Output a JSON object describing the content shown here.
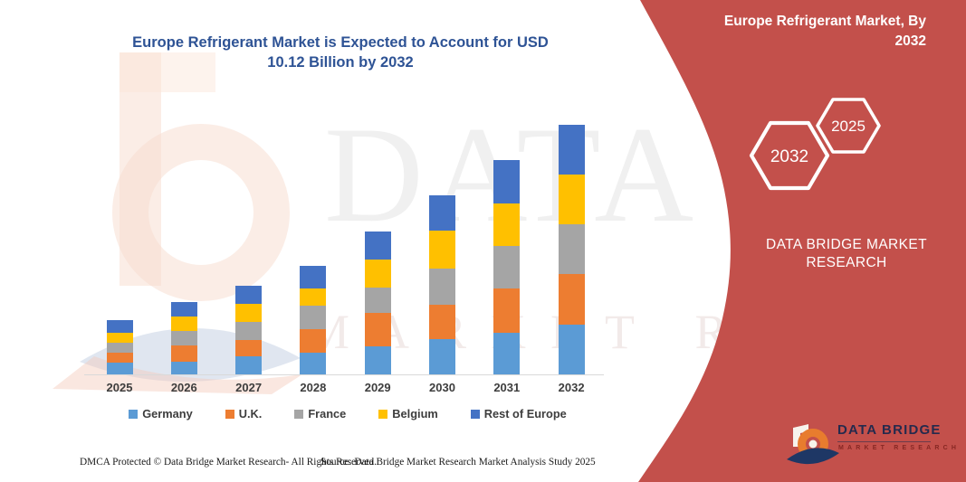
{
  "chart": {
    "title_line1": "Europe Refrigerant Market is Expected to Account for USD",
    "title_line2": "10.12 Billion by 2032",
    "title_color": "#2e5395"
  },
  "chart_data": {
    "type": "bar",
    "stacked": true,
    "title": "Europe Refrigerant Market is Expected to Account for USD 10.12 Billion by 2032",
    "categories": [
      "2025",
      "2026",
      "2027",
      "2028",
      "2029",
      "2030",
      "2031",
      "2032"
    ],
    "series": [
      {
        "name": "Germany",
        "color": "#5B9BD5",
        "values": [
          0.48,
          0.51,
          0.73,
          0.88,
          1.14,
          1.43,
          1.69,
          2.02
        ]
      },
      {
        "name": "U.K.",
        "color": "#ED7D31",
        "values": [
          0.4,
          0.66,
          0.66,
          0.95,
          1.36,
          1.39,
          1.8,
          2.05
        ]
      },
      {
        "name": "France",
        "color": "#A5A5A5",
        "values": [
          0.4,
          0.59,
          0.73,
          0.95,
          1.03,
          1.47,
          1.72,
          2.02
        ]
      },
      {
        "name": "Belgium",
        "color": "#FFC000",
        "values": [
          0.4,
          0.59,
          0.73,
          0.7,
          1.14,
          1.54,
          1.72,
          2.02
        ]
      },
      {
        "name": "Rest of Europe",
        "color": "#4472C4",
        "values": [
          0.51,
          0.59,
          0.73,
          0.92,
          1.14,
          1.43,
          1.76,
          2.01
        ]
      }
    ],
    "estimated_totals": [
      2.19,
      2.94,
      3.58,
      4.4,
      5.81,
      7.26,
      8.69,
      10.12
    ],
    "units": "USD Billion (estimated from bar heights; axis unlabeled)",
    "xlabel": "",
    "ylabel": "",
    "ylim": [
      0,
      10.78
    ],
    "grid": false,
    "legend_position": "bottom"
  },
  "panel": {
    "title": "Europe Refrigerant Market, By 2032",
    "title_line1": "Europe Refrigerant Market, By",
    "title_line2": "2032",
    "hexagons": [
      "2032",
      "2025"
    ],
    "brand_text": "DATA BRIDGE MARKET RESEARCH",
    "brand_line1": "DATA BRIDGE MARKET",
    "brand_line2": "RESEARCH",
    "bg_color": "#C3504B"
  },
  "logo": {
    "name": "DATA BRIDGE",
    "tagline": "MARKET RESEARCH"
  },
  "watermark": {
    "line1": "DATA BRIDGE",
    "line2": "MARKET RESEARCH"
  },
  "footer": {
    "dmca": "DMCA Protected © Data Bridge Market Research-  All Rights Reserved.",
    "source": "Source: Data Bridge Market Research  Market Analysis Study 2025"
  }
}
